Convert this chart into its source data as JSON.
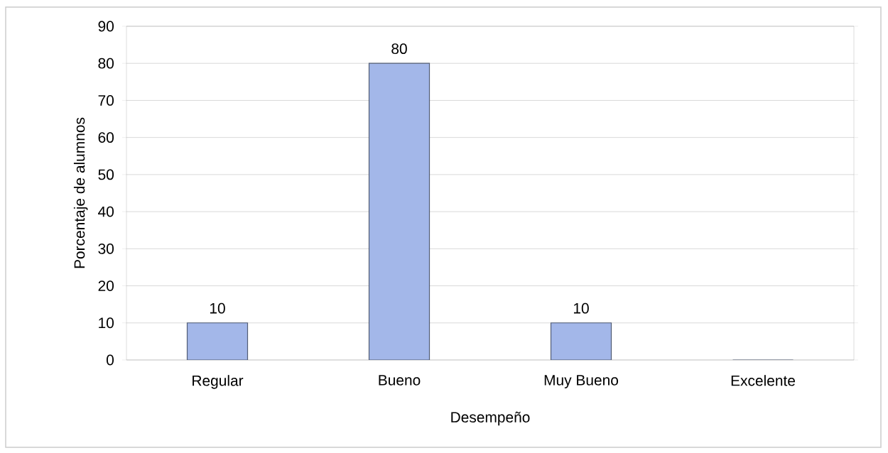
{
  "chart_data": {
    "type": "bar",
    "xlabel": "Desempeño",
    "ylabel": "Porcentaje de alumnos",
    "categories": [
      "Regular",
      "Bueno",
      "Muy Bueno",
      "Excelente"
    ],
    "values": [
      10,
      80,
      10,
      0
    ],
    "value_labels": [
      "10",
      "80",
      "10",
      null
    ],
    "color": "#a3b7e9",
    "ylim": [
      0,
      90
    ],
    "yticks": [
      0,
      10,
      20,
      30,
      40,
      50,
      60,
      70,
      80,
      90
    ],
    "grid": "y"
  }
}
